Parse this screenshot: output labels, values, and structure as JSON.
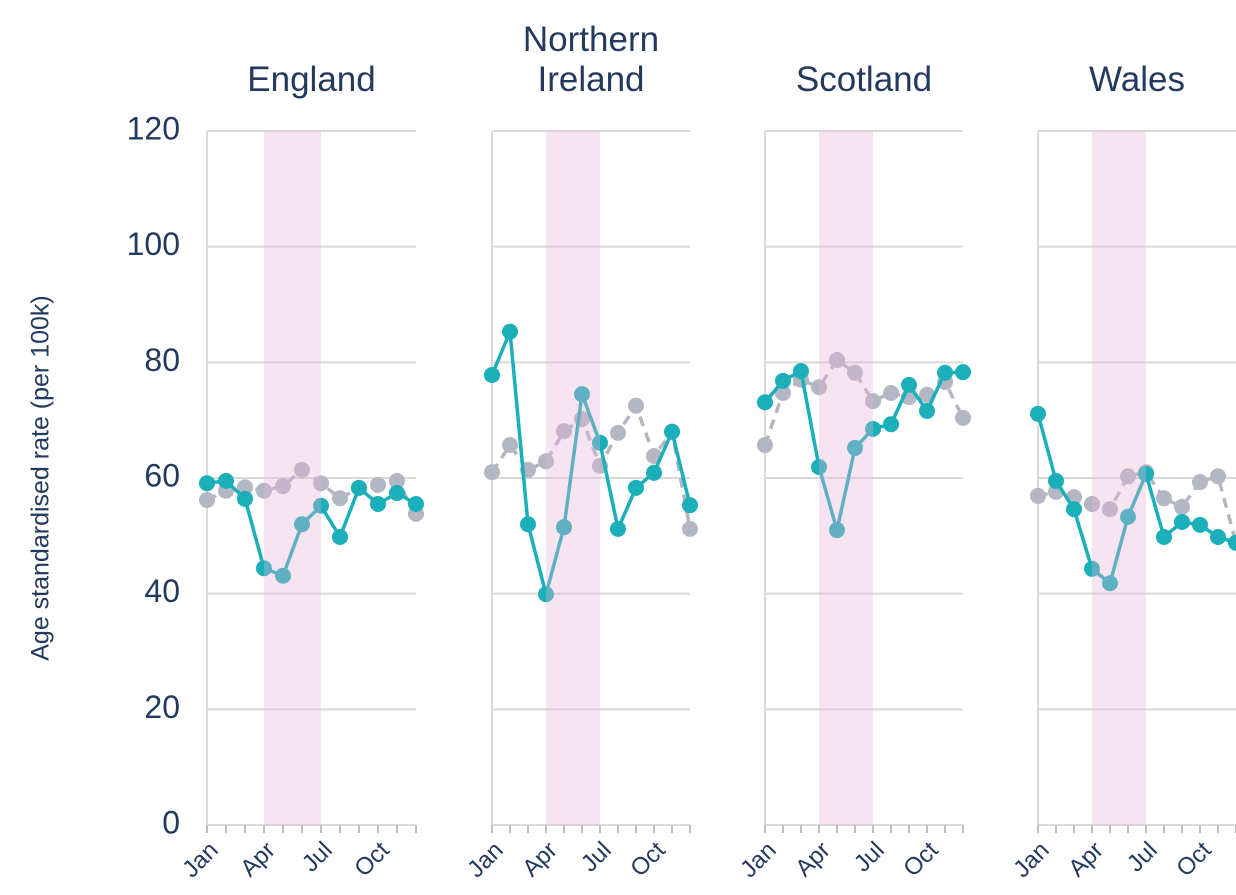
{
  "chart_data": [
    {
      "type": "line",
      "title": "England",
      "ylabel": "Age standardised rate (per 100k)",
      "categories": [
        "Jan",
        null,
        null,
        "Apr",
        null,
        null,
        "Jul",
        null,
        null,
        "Oct",
        null,
        null
      ],
      "series": [
        {
          "color": "#1aafb9",
          "dash": false,
          "values": [
            59.1,
            59.5,
            56.4,
            44.4,
            43.1,
            52.0,
            55.2,
            49.8,
            58.3,
            55.5,
            57.4,
            55.5
          ]
        },
        {
          "color": "#b3b7c4",
          "dash": true,
          "values": [
            56.2,
            57.8,
            58.4,
            57.8,
            58.6,
            61.4,
            59.1,
            56.5,
            58.3,
            58.8,
            59.5,
            53.8
          ]
        }
      ],
      "highlight": [
        "Apr",
        "Jul"
      ],
      "highlight_color": "#e6b3d6",
      "ylim": [
        0,
        120
      ],
      "yticks": [
        0,
        20,
        40,
        60,
        80,
        100,
        120
      ],
      "grid": true
    },
    {
      "type": "line",
      "title": "Northern Ireland",
      "categories": [
        "Jan",
        null,
        null,
        "Apr",
        null,
        null,
        "Jul",
        null,
        null,
        "Oct",
        null,
        null
      ],
      "series": [
        {
          "color": "#1aafb9",
          "dash": false,
          "values": [
            77.8,
            85.3,
            52.0,
            39.9,
            51.5,
            74.5,
            66.1,
            51.2,
            58.3,
            60.9,
            68.0,
            55.3
          ]
        },
        {
          "color": "#b3b7c4",
          "dash": true,
          "values": [
            61.0,
            65.7,
            61.4,
            62.9,
            68.1,
            70.2,
            62.1,
            67.8,
            72.5,
            63.8,
            68.0,
            51.2
          ]
        }
      ],
      "highlight": [
        "Apr",
        "Jul"
      ],
      "highlight_color": "#e6b3d6",
      "ylim": [
        0,
        120
      ],
      "yticks": [
        0,
        20,
        40,
        60,
        80,
        100,
        120
      ],
      "grid": true
    },
    {
      "type": "line",
      "title": "Scotland",
      "categories": [
        "Jan",
        null,
        null,
        "Apr",
        null,
        null,
        "Jul",
        null,
        null,
        "Oct",
        null,
        null
      ],
      "series": [
        {
          "color": "#1aafb9",
          "dash": false,
          "values": [
            73.1,
            76.8,
            78.5,
            61.9,
            51.0,
            65.2,
            68.5,
            69.3,
            76.1,
            71.6,
            78.2,
            78.3
          ]
        },
        {
          "color": "#b3b7c4",
          "dash": true,
          "values": [
            65.7,
            74.7,
            77.0,
            75.7,
            80.4,
            78.2,
            73.3,
            74.7,
            74.0,
            74.4,
            76.6,
            70.4
          ]
        }
      ],
      "highlight": [
        "Apr",
        "Jul"
      ],
      "highlight_color": "#e6b3d6",
      "ylim": [
        0,
        120
      ],
      "yticks": [
        0,
        20,
        40,
        60,
        80,
        100,
        120
      ],
      "grid": true
    },
    {
      "type": "line",
      "title": "Wales",
      "categories": [
        "Jan",
        null,
        null,
        "Apr",
        null,
        null,
        "Jul",
        null,
        null,
        "Oct",
        null,
        null
      ],
      "series": [
        {
          "color": "#1aafb9",
          "dash": false,
          "values": [
            71.1,
            59.5,
            54.6,
            44.3,
            41.8,
            53.3,
            60.7,
            49.8,
            52.4,
            51.9,
            49.8,
            48.8
          ]
        },
        {
          "color": "#b3b7c4",
          "dash": true,
          "values": [
            56.9,
            57.6,
            56.7,
            55.5,
            54.6,
            60.3,
            61.0,
            56.5,
            55.0,
            59.3,
            60.3,
            48.8
          ]
        }
      ],
      "highlight": [
        "Apr",
        "Jul"
      ],
      "highlight_color": "#e6b3d6",
      "ylim": [
        0,
        120
      ],
      "yticks": [
        0,
        20,
        40,
        60,
        80,
        100,
        120
      ],
      "grid": true
    }
  ]
}
